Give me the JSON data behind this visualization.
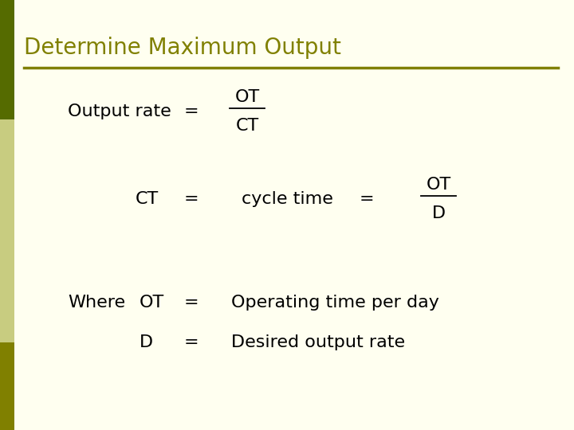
{
  "title": "Determine Maximum Output",
  "title_color": "#808000",
  "title_fontsize": 20,
  "bg_color": "#FFFFF0",
  "left_bar_top_color": "#556B00",
  "left_bar_mid_color": "#C8CC80",
  "left_bar_bot_color": "#808000",
  "separator_color": "#808000",
  "body_fontsize": 16,
  "body_font": "Georgia",
  "line1_left": "Output rate",
  "line1_eq": "=",
  "line1_right_top": "OT",
  "line1_right_bot": "CT",
  "line2_left": "CT",
  "line2_eq": "=",
  "line2_mid": "cycle time",
  "line2_eq2": "=",
  "line2_right_top": "OT",
  "line2_right_bot": "D",
  "line3a_left": "Where",
  "line3a_mid": "OT",
  "line3a_eq": "=",
  "line3a_right": "Operating time per day",
  "line3b_mid": "D",
  "line3b_eq": "=",
  "line3b_right": "Desired output rate"
}
